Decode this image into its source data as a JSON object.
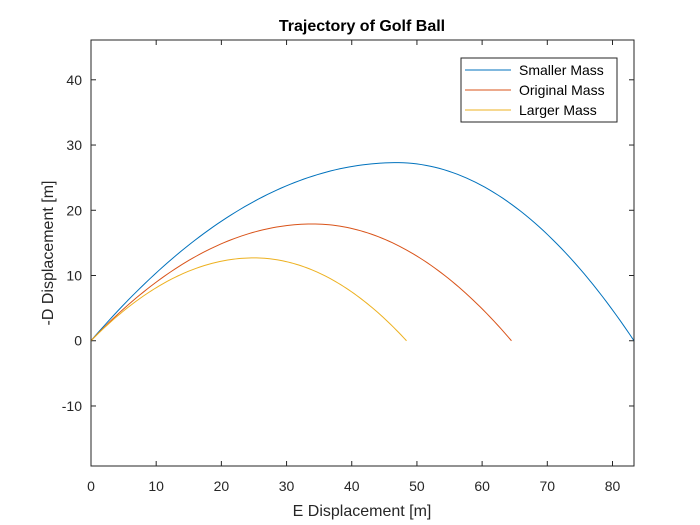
{
  "chart_data": {
    "type": "line",
    "title": "Trajectory of Golf Ball",
    "xlabel": "E Displacement [m]",
    "ylabel": "-D Displacement [m]",
    "xlim": [
      0,
      83.3
    ],
    "ylim": [
      -19.2,
      46.1
    ],
    "xticks": [
      0,
      10,
      20,
      30,
      40,
      50,
      60,
      70,
      80
    ],
    "yticks": [
      -10,
      0,
      10,
      20,
      30,
      40
    ],
    "grid": false,
    "legend_position": "top-right",
    "series": [
      {
        "name": "Smaller Mass",
        "color": "#0072BD",
        "range": 83.3,
        "apex_x": 46.9,
        "apex_y": 27.3
      },
      {
        "name": "Original Mass",
        "color": "#D95319",
        "range": 64.5,
        "apex_x": 34.0,
        "apex_y": 17.9
      },
      {
        "name": "Larger Mass",
        "color": "#EDB120",
        "range": 48.4,
        "apex_x": 25.0,
        "apex_y": 12.7
      }
    ]
  }
}
